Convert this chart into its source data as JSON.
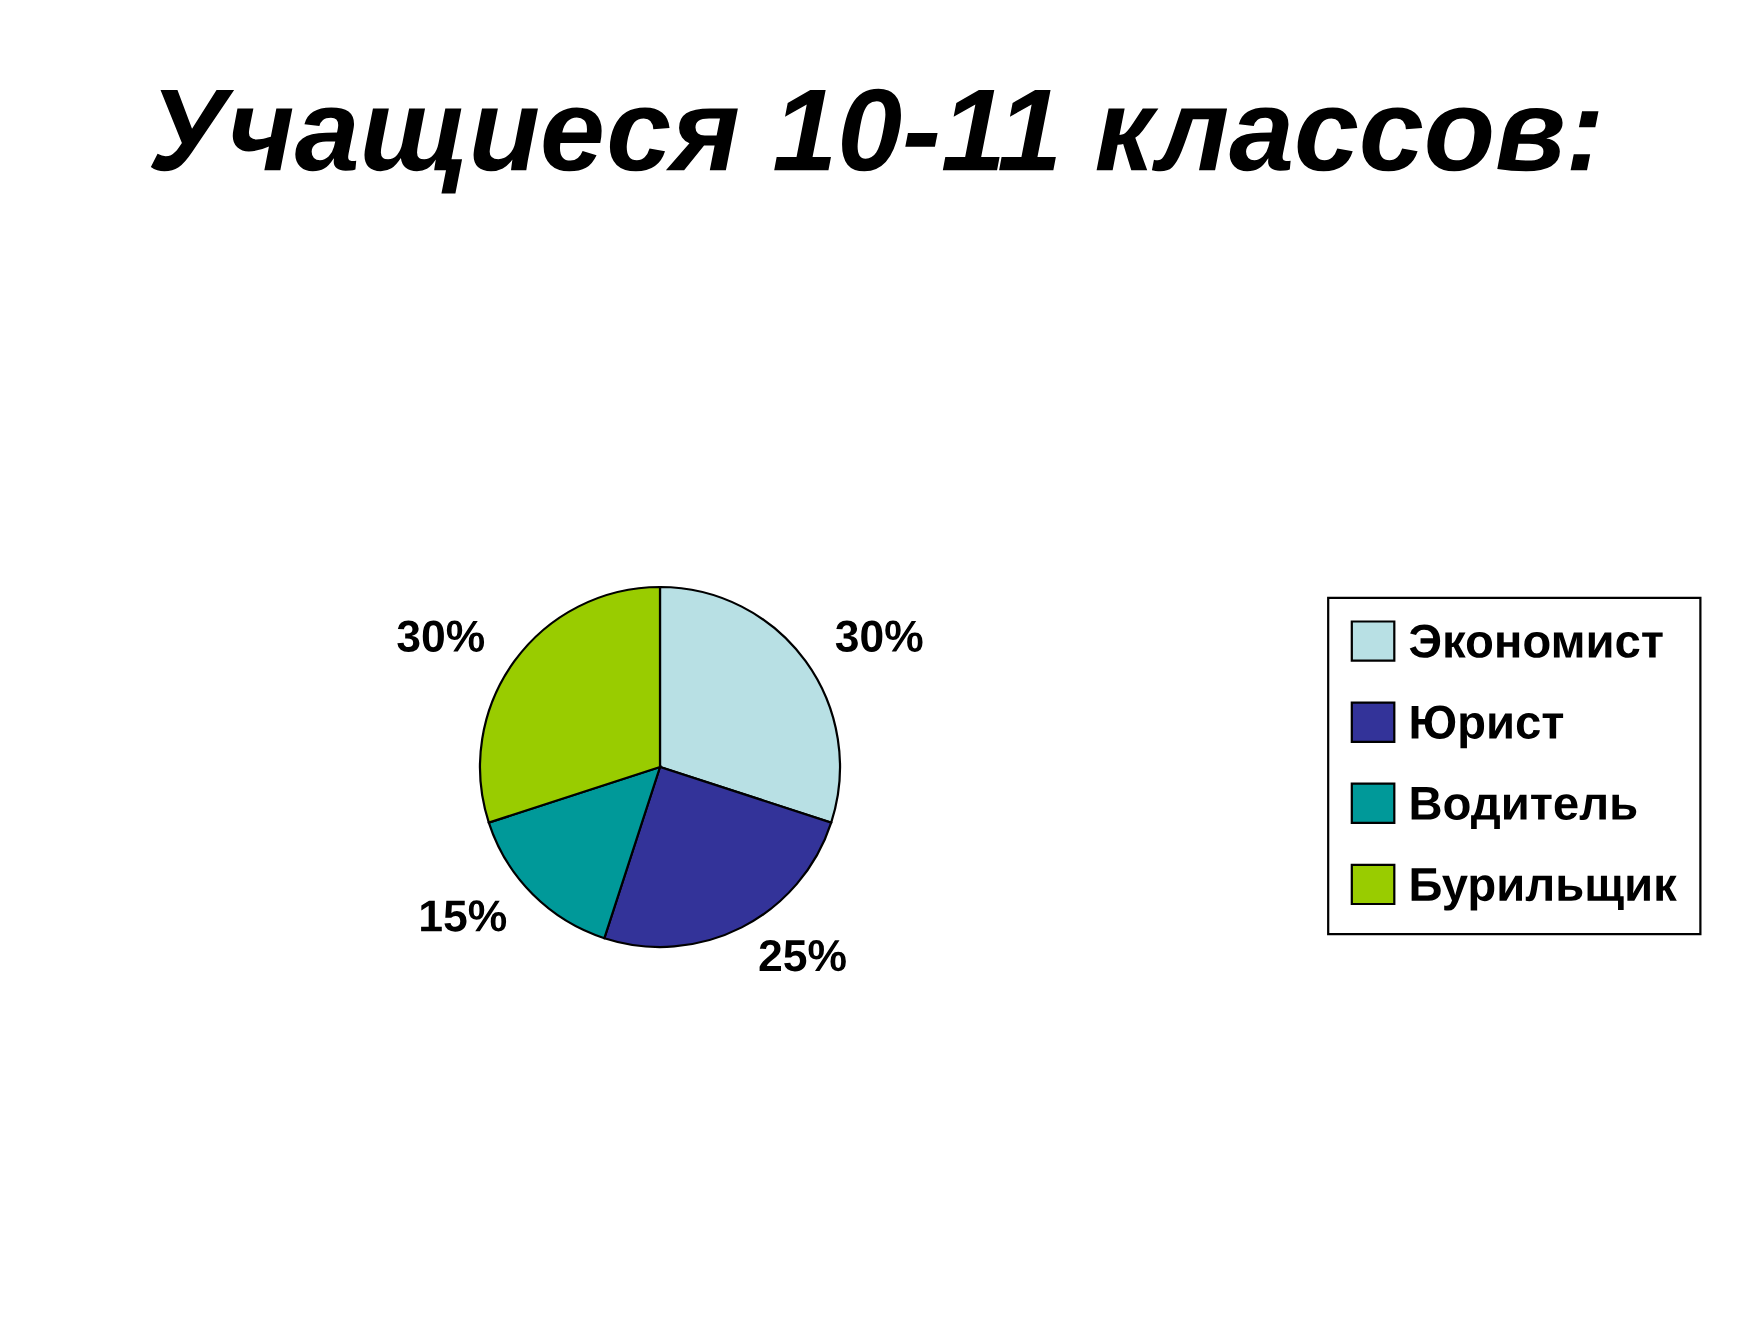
{
  "chart_data": {
    "type": "pie",
    "title": "Учащиеся 10-11 классов:",
    "categories": [
      "Экономист",
      "Юрист",
      "Водитель",
      "Бурильщик"
    ],
    "values": [
      30,
      25,
      15,
      30
    ],
    "colors": [
      "#b8e0e4",
      "#333399",
      "#009999",
      "#99cc00"
    ],
    "value_labels": [
      "30%",
      "25%",
      "15%",
      "30%"
    ],
    "legend": "right"
  }
}
